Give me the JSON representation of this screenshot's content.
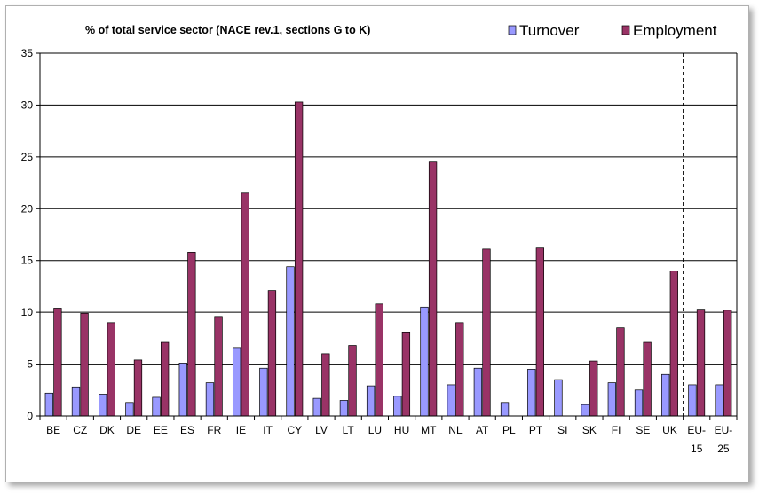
{
  "chart_data": {
    "type": "bar",
    "title": "% of total service sector (NACE rev.1, sections G to K)",
    "categories": [
      "BE",
      "CZ",
      "DK",
      "DE",
      "EE",
      "ES",
      "FR",
      "IE",
      "IT",
      "CY",
      "LV",
      "LT",
      "LU",
      "HU",
      "MT",
      "NL",
      "AT",
      "PL",
      "PT",
      "SI",
      "SK",
      "FI",
      "SE",
      "UK",
      "EU-15",
      "EU-25"
    ],
    "series": [
      {
        "name": "Turnover",
        "color": "#9999ff",
        "values": [
          2.2,
          2.8,
          2.1,
          1.3,
          1.8,
          5.1,
          3.2,
          6.6,
          4.6,
          14.4,
          1.7,
          1.5,
          2.9,
          1.9,
          10.5,
          3.0,
          4.6,
          1.3,
          4.5,
          3.5,
          1.1,
          3.2,
          2.5,
          4.0,
          3.0,
          3.0
        ]
      },
      {
        "name": "Employment",
        "color": "#993366",
        "values": [
          10.4,
          9.9,
          9.0,
          5.4,
          7.1,
          15.8,
          9.6,
          21.5,
          12.1,
          30.3,
          6.0,
          6.8,
          10.8,
          8.1,
          24.5,
          9.0,
          16.1,
          null,
          16.2,
          null,
          5.3,
          8.5,
          7.1,
          14.0,
          10.3,
          10.2
        ]
      }
    ],
    "ylim": [
      0,
      35
    ],
    "yticks": [
      0,
      5,
      10,
      15,
      20,
      25,
      30,
      35
    ],
    "grid": true,
    "legend_position": "top-right",
    "annotations": [
      "dashed vertical separator between UK and EU-15"
    ]
  }
}
